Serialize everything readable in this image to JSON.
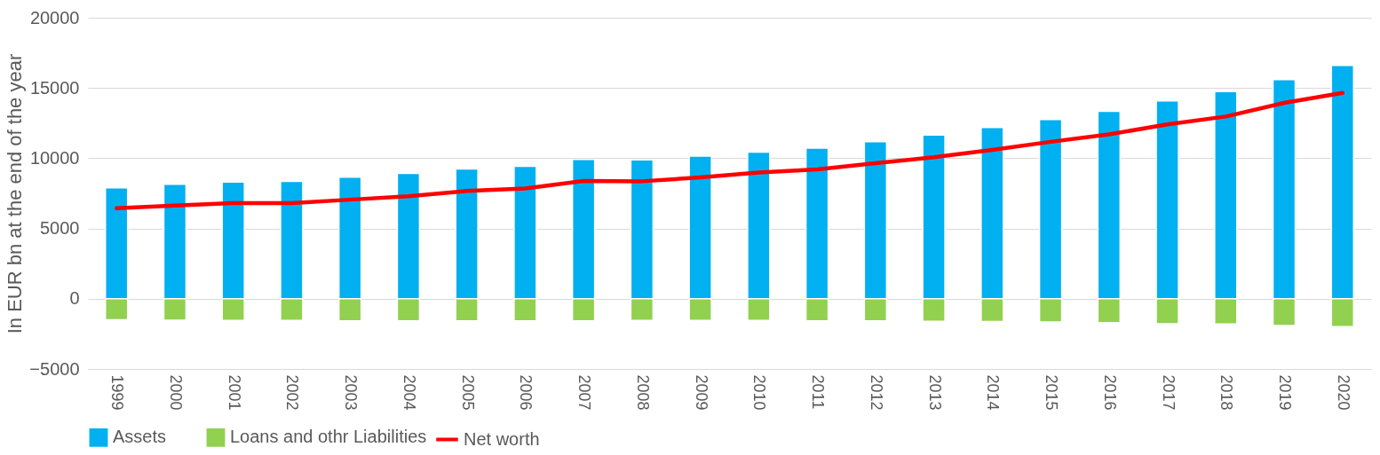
{
  "chart_data": {
    "type": "bar",
    "ylabel": "In EUR bn at the end of the year",
    "categories": [
      "1999",
      "2000",
      "2001",
      "2002",
      "2003",
      "2004",
      "2005",
      "2006",
      "2007",
      "2008",
      "2009",
      "2010",
      "2011",
      "2012",
      "2013",
      "2014",
      "2015",
      "2016",
      "2017",
      "2018",
      "2019",
      "2020"
    ],
    "series": [
      {
        "name": "Assets",
        "color": "#00b0f0",
        "values": [
          7900,
          8140,
          8310,
          8360,
          8650,
          8920,
          9240,
          9430,
          9910,
          9880,
          10150,
          10440,
          10720,
          11180,
          11650,
          12180,
          12760,
          13340,
          14080,
          14740,
          15600,
          16610
        ]
      },
      {
        "name": "Loans and othr Liabilities",
        "color": "#92d050",
        "values": [
          -1490,
          -1520,
          -1540,
          -1540,
          -1570,
          -1570,
          -1570,
          -1570,
          -1570,
          -1540,
          -1540,
          -1540,
          -1570,
          -1570,
          -1600,
          -1620,
          -1650,
          -1700,
          -1780,
          -1800,
          -1910,
          -1990
        ]
      },
      {
        "name": "Net worth",
        "type": "line",
        "color": "#ff0000",
        "values": [
          6440,
          6630,
          6810,
          6810,
          7050,
          7290,
          7670,
          7850,
          8380,
          8360,
          8630,
          8990,
          9200,
          9650,
          10070,
          10600,
          11170,
          11700,
          12410,
          12970,
          13940,
          14650
        ]
      }
    ],
    "stacked": true,
    "ylim": [
      -5000,
      20000
    ],
    "yticks": [
      -5000,
      0,
      5000,
      10000,
      15000,
      20000
    ],
    "grid": "y",
    "legend": "bottom"
  }
}
